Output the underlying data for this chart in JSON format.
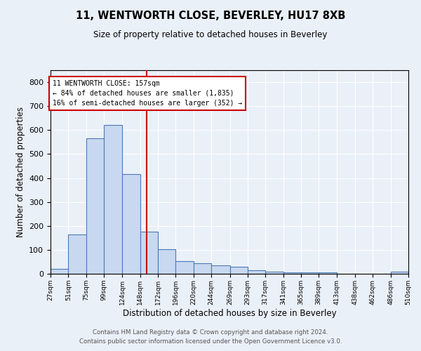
{
  "title": "11, WENTWORTH CLOSE, BEVERLEY, HU17 8XB",
  "subtitle": "Size of property relative to detached houses in Beverley",
  "xlabel": "Distribution of detached houses by size in Beverley",
  "ylabel": "Number of detached properties",
  "footnote1": "Contains HM Land Registry data © Crown copyright and database right 2024.",
  "footnote2": "Contains public sector information licensed under the Open Government Licence v3.0.",
  "bar_edges": [
    27,
    51,
    75,
    99,
    124,
    148,
    172,
    196,
    220,
    244,
    269,
    293,
    317,
    341,
    365,
    389,
    413,
    438,
    462,
    486,
    510
  ],
  "bar_heights": [
    20,
    165,
    565,
    620,
    415,
    175,
    103,
    53,
    43,
    35,
    30,
    15,
    10,
    7,
    5,
    5,
    0,
    0,
    0,
    8
  ],
  "tick_labels": [
    "27sqm",
    "51sqm",
    "75sqm",
    "99sqm",
    "124sqm",
    "148sqm",
    "172sqm",
    "196sqm",
    "220sqm",
    "244sqm",
    "269sqm",
    "293sqm",
    "317sqm",
    "341sqm",
    "365sqm",
    "389sqm",
    "413sqm",
    "438sqm",
    "462sqm",
    "486sqm",
    "510sqm"
  ],
  "property_size": 157,
  "vline_color": "#cc0000",
  "bar_facecolor": "#c8d8f0",
  "bar_edgecolor": "#4a7ab5",
  "annotation_line1": "11 WENTWORTH CLOSE: 157sqm",
  "annotation_line2": "← 84% of detached houses are smaller (1,835)",
  "annotation_line3": "16% of semi-detached houses are larger (352) →",
  "annotation_box_color": "#ffffff",
  "annotation_border_color": "#cc0000",
  "ylim": [
    0,
    850
  ],
  "yticks": [
    0,
    100,
    200,
    300,
    400,
    500,
    600,
    700,
    800
  ],
  "bg_color": "#eaf0f8",
  "plot_bg_color": "#eaf0f8"
}
